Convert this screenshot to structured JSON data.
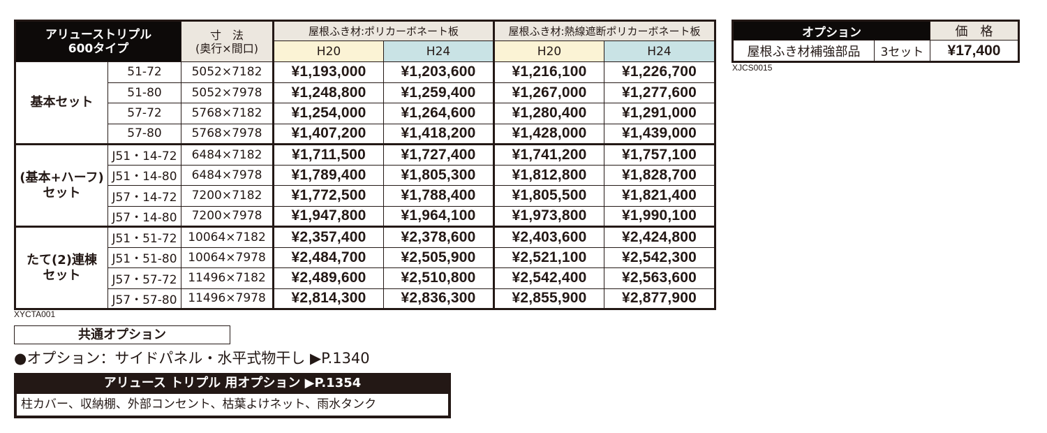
{
  "main_table": {
    "product_title_line1": "アリューストリプル",
    "product_title_line2": "600タイプ",
    "size_header_line1": "寸　法",
    "size_header_line2": "(奥行×間口)",
    "roof_groups": [
      {
        "label": "屋根ふき材:ポリカーボネート板",
        "sub": [
          "H20",
          "H24"
        ]
      },
      {
        "label": "屋根ふき材:熱線遮断ポリカーボネート板",
        "sub": [
          "H20",
          "H24"
        ]
      }
    ],
    "sets": [
      {
        "label_line1": "基本セット",
        "label_line2": "",
        "rows": [
          {
            "model": "51-72",
            "size": "5052×7182",
            "prices": [
              "¥1,193,000",
              "¥1,203,600",
              "¥1,216,100",
              "¥1,226,700"
            ]
          },
          {
            "model": "51-80",
            "size": "5052×7978",
            "prices": [
              "¥1,248,800",
              "¥1,259,400",
              "¥1,267,000",
              "¥1,277,600"
            ]
          },
          {
            "model": "57-72",
            "size": "5768×7182",
            "prices": [
              "¥1,254,000",
              "¥1,264,600",
              "¥1,280,400",
              "¥1,291,000"
            ]
          },
          {
            "model": "57-80",
            "size": "5768×7978",
            "prices": [
              "¥1,407,200",
              "¥1,418,200",
              "¥1,428,000",
              "¥1,439,000"
            ]
          }
        ]
      },
      {
        "label_line1": "(基本+ハーフ)",
        "label_line2": "セット",
        "rows": [
          {
            "model": "J51・14-72",
            "size": "6484×7182",
            "prices": [
              "¥1,711,500",
              "¥1,727,400",
              "¥1,741,200",
              "¥1,757,100"
            ]
          },
          {
            "model": "J51・14-80",
            "size": "6484×7978",
            "prices": [
              "¥1,789,400",
              "¥1,805,300",
              "¥1,812,800",
              "¥1,828,700"
            ]
          },
          {
            "model": "J57・14-72",
            "size": "7200×7182",
            "prices": [
              "¥1,772,500",
              "¥1,788,400",
              "¥1,805,500",
              "¥1,821,400"
            ]
          },
          {
            "model": "J57・14-80",
            "size": "7200×7978",
            "prices": [
              "¥1,947,800",
              "¥1,964,100",
              "¥1,973,800",
              "¥1,990,100"
            ]
          }
        ]
      },
      {
        "label_line1": "たて(2)連棟",
        "label_line2": "セット",
        "rows": [
          {
            "model": "J51・51-72",
            "size": "10064×7182",
            "prices": [
              "¥2,357,400",
              "¥2,378,600",
              "¥2,403,600",
              "¥2,424,800"
            ]
          },
          {
            "model": "J51・51-80",
            "size": "10064×7978",
            "prices": [
              "¥2,484,700",
              "¥2,505,900",
              "¥2,521,100",
              "¥2,542,300"
            ]
          },
          {
            "model": "J57・57-72",
            "size": "11496×7182",
            "prices": [
              "¥2,489,600",
              "¥2,510,800",
              "¥2,542,400",
              "¥2,563,600"
            ]
          },
          {
            "model": "J57・57-80",
            "size": "11496×7978",
            "prices": [
              "¥2,814,300",
              "¥2,836,300",
              "¥2,855,900",
              "¥2,877,900"
            ]
          }
        ]
      }
    ],
    "code": "XYCTA001"
  },
  "option_table": {
    "header_option": "オプション",
    "header_price": "価　格",
    "item_name": "屋根ふき材補強部品",
    "item_qty": "3セット",
    "item_price": "¥17,400",
    "code": "XJCS0015"
  },
  "common_options": {
    "title": "共通オプション",
    "line": "●オプション：サイドパネル・水平式物干し ▶P.1340"
  },
  "triple_options": {
    "title": "アリュース トリプル 用オプション ▶P.1354",
    "body": "柱カバー、収納棚、外部コンセント、枯葉よけネット、雨水タンク"
  },
  "colors": {
    "black_header": "#0d0a09",
    "beige_header": "#ece7df",
    "h20_cell": "#fbf3d5",
    "h24_cell": "#c9e3e5",
    "ink": "#231815"
  }
}
